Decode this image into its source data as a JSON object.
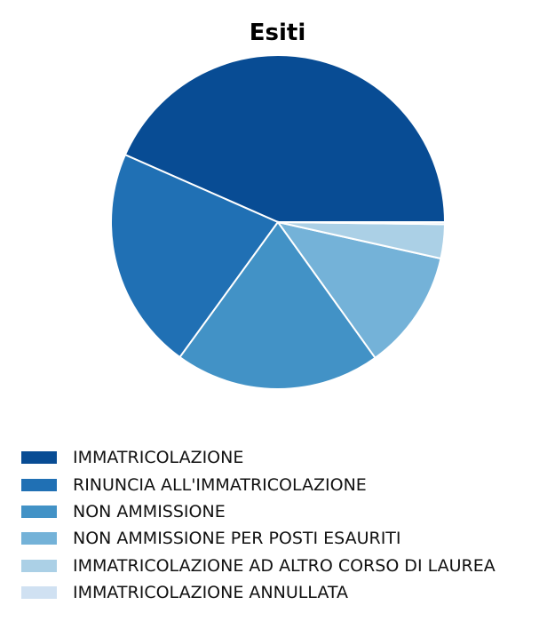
{
  "chart_data": {
    "type": "pie",
    "title": "Esiti",
    "categories": [
      "IMMATRICOLAZIONE",
      "RINUNCIA ALL'IMMATRICOLAZIONE",
      "NON AMMISSIONE",
      "NON AMMISSIONE PER POSTI ESAURITI",
      "IMMATRICOLAZIONE AD ALTRO CORSO DI LAUREA",
      "IMMATRICOLAZIONE ANNULLATA"
    ],
    "values": [
      43.4,
      21.6,
      19.9,
      11.6,
      3.3,
      0.2
    ],
    "colors": [
      "#084c94",
      "#2070b4",
      "#4292c6",
      "#74b2d8",
      "#abd0e6",
      "#d0e1f2"
    ],
    "start_angle_deg": 0,
    "direction": "counterclockwise",
    "legend_position": "bottom-left"
  }
}
